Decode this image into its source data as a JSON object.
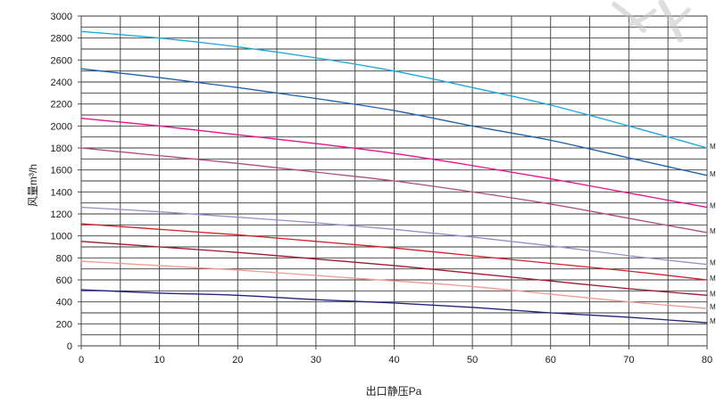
{
  "chart_data": {
    "type": "line",
    "xlabel": "出口静压Pa",
    "ylabel": "风量m³/h",
    "xlim": [
      0,
      80
    ],
    "ylim": [
      0,
      3000
    ],
    "grid": true,
    "x_ticks": [
      "0",
      "10",
      "20",
      "30",
      "40",
      "50",
      "60",
      "70",
      "80"
    ],
    "y_ticks": [
      "0",
      "200",
      "400",
      "600",
      "800",
      "1000",
      "1200",
      "1400",
      "1600",
      "1800",
      "2000",
      "2200",
      "2400",
      "2600",
      "2800",
      "3000"
    ],
    "x": [
      0,
      10,
      20,
      30,
      40,
      50,
      60,
      70,
      80
    ],
    "series": [
      {
        "label": "M",
        "color": "#1ea8df",
        "values": [
          2860,
          2800,
          2720,
          2620,
          2500,
          2350,
          2190,
          2000,
          1800
        ]
      },
      {
        "label": "M",
        "color": "#1d62ad",
        "values": [
          2520,
          2440,
          2350,
          2250,
          2140,
          2000,
          1870,
          1710,
          1550
        ]
      },
      {
        "label": "M",
        "color": "#e2168c",
        "values": [
          2070,
          2000,
          1920,
          1840,
          1750,
          1640,
          1520,
          1390,
          1260
        ]
      },
      {
        "label": "M",
        "color": "#b04e7e",
        "values": [
          1800,
          1730,
          1660,
          1580,
          1500,
          1400,
          1290,
          1160,
          1030
        ]
      },
      {
        "label": "M",
        "color": "#9a8fc9",
        "values": [
          1260,
          1220,
          1170,
          1120,
          1060,
          990,
          910,
          820,
          740
        ]
      },
      {
        "label": "M",
        "color": "#d3212b",
        "values": [
          1110,
          1060,
          1010,
          950,
          890,
          820,
          750,
          680,
          600
        ]
      },
      {
        "label": "M",
        "color": "#9c1c2e",
        "values": [
          950,
          900,
          850,
          790,
          730,
          660,
          590,
          520,
          460
        ]
      },
      {
        "label": "M",
        "color": "#f09c92",
        "values": [
          770,
          730,
          690,
          640,
          590,
          540,
          470,
          400,
          340
        ]
      },
      {
        "label": "M",
        "color": "#25237b",
        "values": [
          510,
          480,
          460,
          420,
          390,
          350,
          300,
          260,
          210
        ]
      }
    ]
  }
}
